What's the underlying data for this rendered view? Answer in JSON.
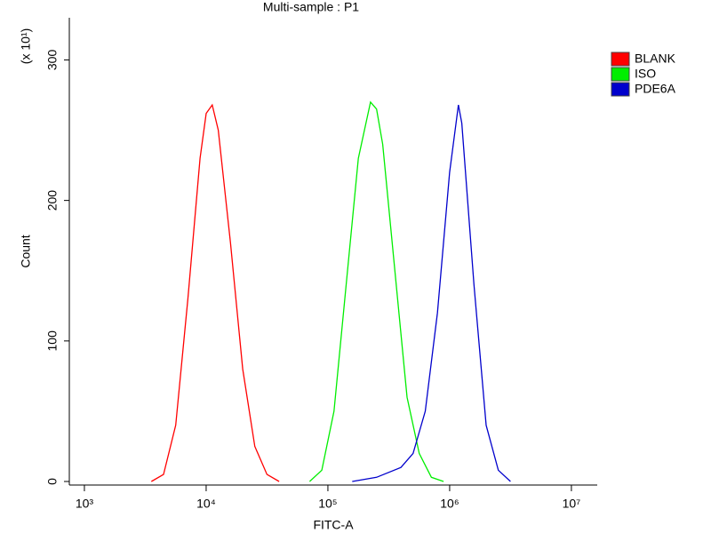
{
  "chart_data": {
    "type": "line",
    "title": "Multi-sample : P1",
    "x_label": "FITC-A",
    "y_label": "Count",
    "y_scale_note": "(x 10¹)",
    "x_log": true,
    "xlim": [
      752,
      16300000
    ],
    "xticks": [
      {
        "value": 1000,
        "label": "10³"
      },
      {
        "value": 10000,
        "label": "10⁴"
      },
      {
        "value": 100000,
        "label": "10⁵"
      },
      {
        "value": 1000000,
        "label": "10⁶"
      },
      {
        "value": 10000000,
        "label": "10⁷"
      }
    ],
    "ylim": [
      0,
      330
    ],
    "yticks": [
      0,
      100,
      200,
      300
    ],
    "legend": "right",
    "series": [
      {
        "name": "BLANK",
        "color": "#ff0000",
        "x": [
          3548,
          4467,
          5623,
          7079,
          8913,
          10000,
          11220,
          12589,
          15849,
          19953,
          25119,
          31623,
          39811
        ],
        "values": [
          0,
          5,
          40,
          130,
          230,
          262,
          268,
          250,
          170,
          80,
          25,
          5,
          0
        ]
      },
      {
        "name": "ISO",
        "color": "#00ee00",
        "x": [
          70795,
          89125,
          112202,
          141254,
          177828,
          223872,
          251189,
          281838,
          354813,
          446684,
          562341,
          707946,
          891251
        ],
        "values": [
          0,
          8,
          50,
          140,
          230,
          270,
          265,
          240,
          150,
          60,
          20,
          3,
          0
        ]
      },
      {
        "name": "PDE6A",
        "color": "#0000cc",
        "x": [
          158489,
          251189,
          398107,
          501187,
          630957,
          794328,
          1000000,
          1180000,
          1258925,
          1584893,
          1995262,
          2511886,
          3162278
        ],
        "values": [
          0,
          3,
          10,
          20,
          50,
          120,
          220,
          268,
          255,
          140,
          40,
          8,
          0
        ]
      }
    ]
  }
}
